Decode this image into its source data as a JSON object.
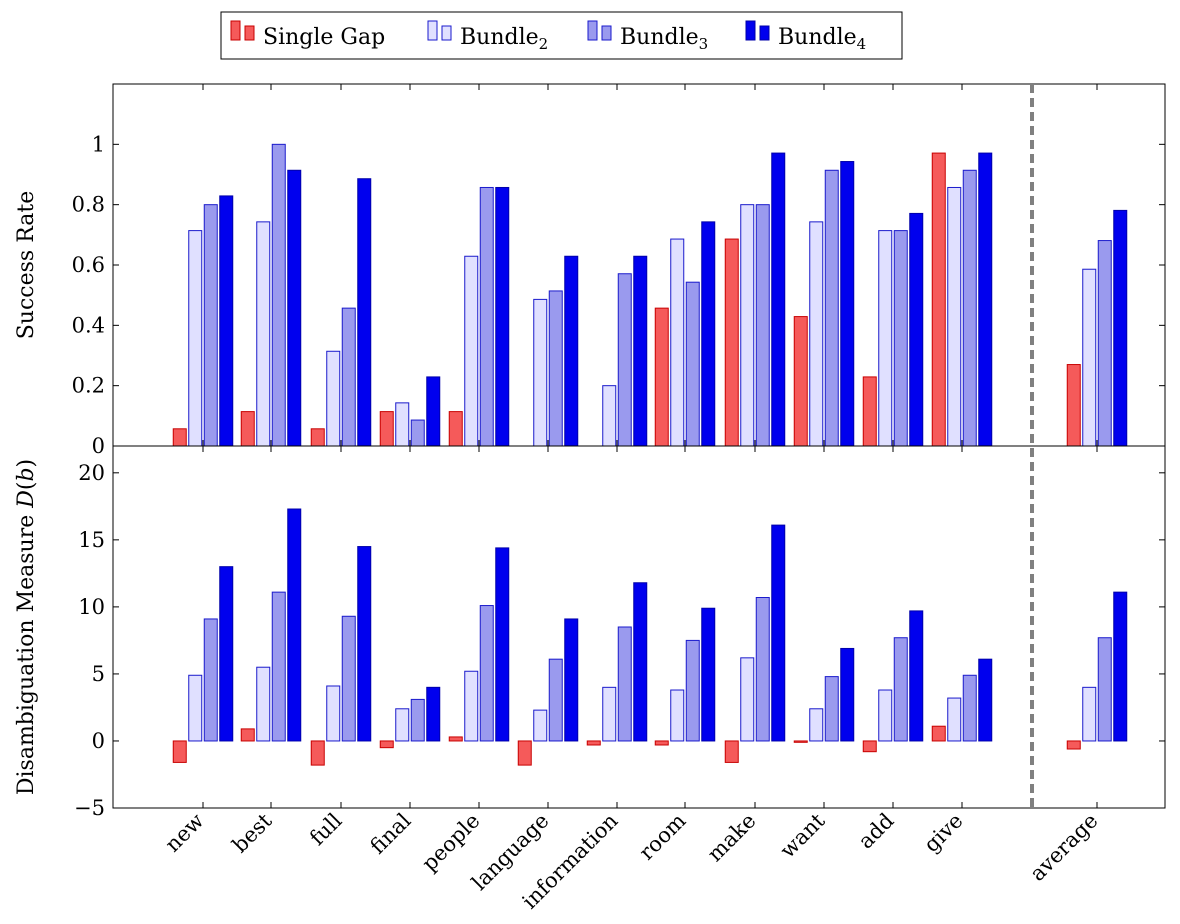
{
  "chart_data": [
    {
      "type": "bar",
      "ylabel": "Success Rate",
      "ylim": [
        0,
        1.2
      ],
      "yticks": [
        "0",
        "0.2",
        "0.4",
        "0.6",
        "0.8",
        "1"
      ],
      "ytick_values": [
        0,
        0.2,
        0.4,
        0.6,
        0.8,
        1
      ],
      "categories": [
        "new",
        "best",
        "full",
        "final",
        "people",
        "language",
        "information",
        "room",
        "make",
        "want",
        "add",
        "give",
        "average"
      ],
      "separator_before": "average",
      "grid": false,
      "series": [
        {
          "name": "Single Gap",
          "values": [
            0.057,
            0.114,
            0.057,
            0.114,
            0.114,
            0,
            0,
            0.457,
            0.686,
            0.429,
            0.229,
            0.971,
            0.27
          ]
        },
        {
          "name": "Bundle2",
          "values": [
            0.714,
            0.743,
            0.314,
            0.143,
            0.629,
            0.486,
            0.2,
            0.686,
            0.8,
            0.743,
            0.714,
            0.857,
            0.586
          ]
        },
        {
          "name": "Bundle3",
          "values": [
            0.8,
            1.0,
            0.457,
            0.086,
            0.857,
            0.514,
            0.571,
            0.543,
            0.8,
            0.914,
            0.714,
            0.914,
            0.681
          ]
        },
        {
          "name": "Bundle4",
          "values": [
            0.829,
            0.914,
            0.886,
            0.229,
            0.857,
            0.629,
            0.629,
            0.743,
            0.971,
            0.943,
            0.771,
            0.971,
            0.781
          ]
        }
      ]
    },
    {
      "type": "bar",
      "ylabel": "Disambiguation Measure D(b)",
      "ylim": [
        -5,
        22
      ],
      "yticks": [
        "−5",
        "0",
        "5",
        "10",
        "15",
        "20"
      ],
      "ytick_values": [
        -5,
        0,
        5,
        10,
        15,
        20
      ],
      "categories": [
        "new",
        "best",
        "full",
        "final",
        "people",
        "language",
        "information",
        "room",
        "make",
        "want",
        "add",
        "give",
        "average"
      ],
      "separator_before": "average",
      "grid": false,
      "series": [
        {
          "name": "Single Gap",
          "values": [
            -1.6,
            0.9,
            -1.8,
            -0.5,
            0.3,
            -1.8,
            -0.3,
            -0.3,
            -1.6,
            -0.1,
            -0.8,
            1.1,
            -0.6
          ]
        },
        {
          "name": "Bundle2",
          "values": [
            4.9,
            5.5,
            4.1,
            2.4,
            5.2,
            2.3,
            4.0,
            3.8,
            6.2,
            2.4,
            3.8,
            3.2,
            4.0
          ]
        },
        {
          "name": "Bundle3",
          "values": [
            9.1,
            11.1,
            9.3,
            3.1,
            10.1,
            6.1,
            8.5,
            7.5,
            10.7,
            4.8,
            7.7,
            4.9,
            7.7
          ]
        },
        {
          "name": "Bundle4",
          "values": [
            13.0,
            17.3,
            14.5,
            4.0,
            14.4,
            9.1,
            11.8,
            9.9,
            16.1,
            6.9,
            9.7,
            6.1,
            11.1
          ]
        }
      ]
    }
  ],
  "legend": {
    "placement": "top-center",
    "entries": [
      {
        "label": "Single Gap",
        "base": "Single Gap",
        "sub": "",
        "fill": "#f55a5a",
        "stroke": "#c80000"
      },
      {
        "label": "Bundle2",
        "base": "Bundle",
        "sub": "2",
        "fill": "#e0e0ff",
        "stroke": "#1a1acc"
      },
      {
        "label": "Bundle3",
        "base": "Bundle",
        "sub": "3",
        "fill": "#9a9aee",
        "stroke": "#1a1acc"
      },
      {
        "label": "Bundle4",
        "base": "Bundle",
        "sub": "4",
        "fill": "#0000ee",
        "stroke": "#0000aa"
      }
    ]
  }
}
